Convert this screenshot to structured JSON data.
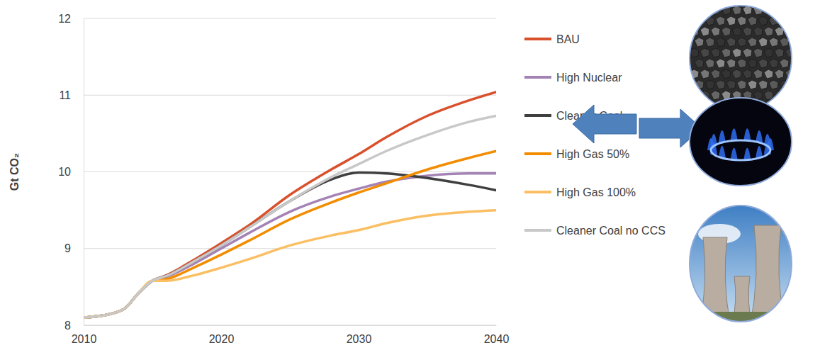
{
  "chart_data": {
    "type": "line",
    "y_label": "Gt CO₂",
    "x": [
      2010,
      2012,
      2013,
      2014,
      2015,
      2016,
      2018,
      2020,
      2022,
      2025,
      2028,
      2030,
      2032,
      2035,
      2038,
      2040
    ],
    "xlim": [
      2010,
      2040
    ],
    "xticks": [
      2010,
      2020,
      2030,
      2040
    ],
    "ylim": [
      8,
      12
    ],
    "yticks": [
      8,
      9,
      10,
      11,
      12
    ],
    "grid": true,
    "legend": "right",
    "series": [
      {
        "name": "BAU",
        "color": "#d9512c",
        "values": [
          8.1,
          8.15,
          8.22,
          8.42,
          8.58,
          8.65,
          8.85,
          9.07,
          9.3,
          9.7,
          10.03,
          10.23,
          10.45,
          10.73,
          10.93,
          11.04
        ]
      },
      {
        "name": "High Nuclear",
        "color": "#a482b5",
        "values": [
          8.1,
          8.15,
          8.22,
          8.42,
          8.58,
          8.63,
          8.8,
          9.0,
          9.2,
          9.48,
          9.68,
          9.78,
          9.87,
          9.95,
          9.98,
          9.98
        ]
      },
      {
        "name": "Cleaner Coal",
        "color": "#3f3f3f",
        "values": [
          8.1,
          8.15,
          8.22,
          8.42,
          8.58,
          8.64,
          8.83,
          9.04,
          9.27,
          9.62,
          9.9,
          9.99,
          9.98,
          9.92,
          9.83,
          9.76
        ]
      },
      {
        "name": "High Gas 50%",
        "color": "#f28c00",
        "values": [
          8.1,
          8.15,
          8.22,
          8.42,
          8.58,
          8.6,
          8.75,
          8.92,
          9.1,
          9.38,
          9.6,
          9.73,
          9.85,
          10.03,
          10.18,
          10.27
        ]
      },
      {
        "name": "High Gas 100%",
        "color": "#fbbf63",
        "values": [
          8.1,
          8.15,
          8.22,
          8.42,
          8.58,
          8.58,
          8.65,
          8.75,
          8.86,
          9.04,
          9.17,
          9.24,
          9.33,
          9.43,
          9.48,
          9.5
        ]
      },
      {
        "name": "Cleaner Coal no CCS",
        "color": "#c8c8c8",
        "values": [
          8.1,
          8.15,
          8.22,
          8.42,
          8.58,
          8.64,
          8.83,
          9.04,
          9.27,
          9.62,
          9.93,
          10.1,
          10.27,
          10.48,
          10.65,
          10.73
        ]
      }
    ]
  }
}
